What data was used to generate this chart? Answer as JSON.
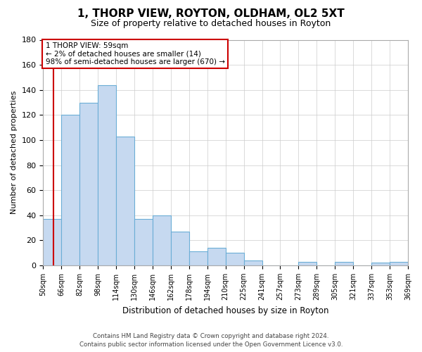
{
  "title": "1, THORP VIEW, ROYTON, OLDHAM, OL2 5XT",
  "subtitle": "Size of property relative to detached houses in Royton",
  "xlabel": "Distribution of detached houses by size in Royton",
  "ylabel": "Number of detached properties",
  "bar_values": [
    37,
    120,
    130,
    144,
    103,
    37,
    40,
    27,
    11,
    14,
    10,
    4,
    0,
    0,
    3,
    0,
    3,
    0,
    2,
    3
  ],
  "bin_labels": [
    "50sqm",
    "66sqm",
    "82sqm",
    "98sqm",
    "114sqm",
    "130sqm",
    "146sqm",
    "162sqm",
    "178sqm",
    "194sqm",
    "210sqm",
    "225sqm",
    "241sqm",
    "257sqm",
    "273sqm",
    "289sqm",
    "305sqm",
    "321sqm",
    "337sqm",
    "353sqm",
    "369sqm"
  ],
  "bar_color": "#c6d9f0",
  "bar_edge_color": "#6baed6",
  "annotation_line1": "1 THORP VIEW: 59sqm",
  "annotation_line2": "← 2% of detached houses are smaller (14)",
  "annotation_line3": "98% of semi-detached houses are larger (670) →",
  "annotation_box_facecolor": "#ffffff",
  "annotation_box_edgecolor": "#cc0000",
  "property_line_x": 59,
  "ylim": [
    0,
    180
  ],
  "yticks": [
    0,
    20,
    40,
    60,
    80,
    100,
    120,
    140,
    160,
    180
  ],
  "footer_line1": "Contains HM Land Registry data © Crown copyright and database right 2024.",
  "footer_line2": "Contains public sector information licensed under the Open Government Licence v3.0.",
  "background_color": "#ffffff",
  "grid_color": "#cccccc",
  "title_fontsize": 11,
  "subtitle_fontsize": 9
}
